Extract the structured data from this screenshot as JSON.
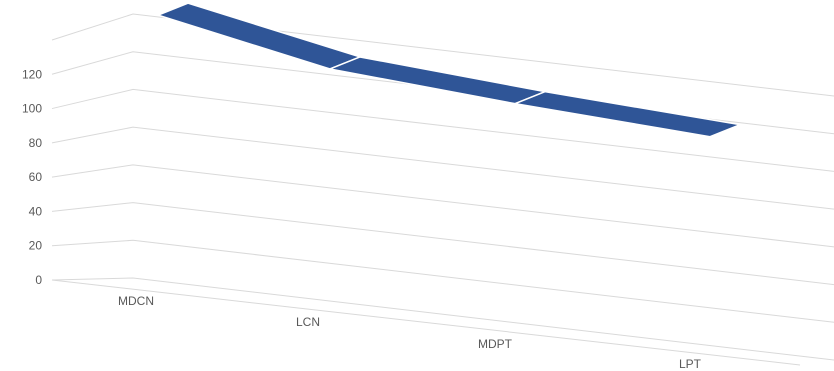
{
  "chart_data": {
    "type": "line",
    "style": "3d-ribbon",
    "categories": [
      "MDCN",
      "LCN",
      "MDPT",
      "LPT"
    ],
    "y_ticks": [
      "0",
      "20",
      "40",
      "60",
      "80",
      "100",
      "120"
    ],
    "ylim": [
      0,
      140
    ],
    "grid": true,
    "legend": "none",
    "series": [
      {
        "values": [
          100,
          82,
          75,
          68
        ]
      }
    ],
    "colors": {
      "ribbon": "#2F5597",
      "ribbon_edge": "#ffffff",
      "grid": "#d9d9d9",
      "text": "#595959"
    }
  }
}
